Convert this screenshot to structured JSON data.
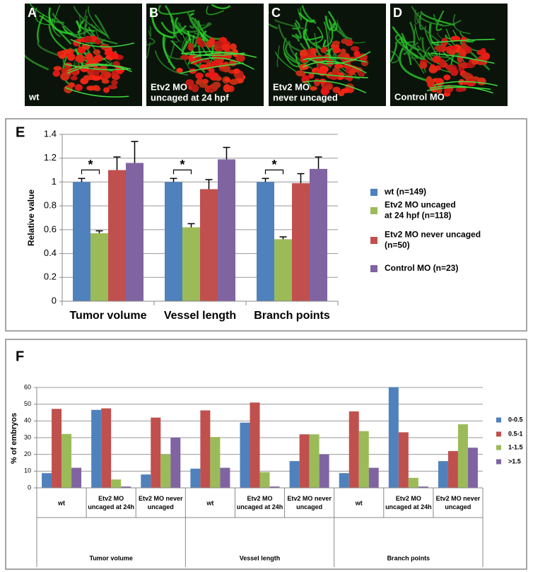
{
  "panels": [
    {
      "letter": "A",
      "caption": "wt"
    },
    {
      "letter": "B",
      "caption": "Etv2 MO\nuncaged at 24 hpf"
    },
    {
      "letter": "C",
      "caption": "Etv2 MO\nnever uncaged"
    },
    {
      "letter": "D",
      "caption": "Control MO"
    }
  ],
  "chart_data": [
    {
      "type": "bar",
      "panel": "E",
      "y_label": "Relative value",
      "categories": [
        "Tumor volume",
        "Vessel length",
        "Branch points"
      ],
      "series": [
        {
          "name": "wt (n=149)",
          "color": "#4f81bd",
          "values": [
            1.0,
            1.0,
            1.0
          ],
          "errors": [
            0.03,
            0.03,
            0.03
          ]
        },
        {
          "name": "Etv2 MO uncaged\nat 24 hpf (n=118)",
          "color": "#9bbb59",
          "values": [
            0.57,
            0.62,
            0.52
          ],
          "errors": [
            0.02,
            0.03,
            0.02
          ]
        },
        {
          "name": "Etv2 MO never uncaged\n(n=50)",
          "color": "#c0504d",
          "values": [
            1.1,
            0.94,
            0.99
          ],
          "errors": [
            0.11,
            0.08,
            0.08
          ]
        },
        {
          "name": "Control MO (n=23)",
          "color": "#8064a2",
          "values": [
            1.16,
            1.19,
            1.11
          ],
          "errors": [
            0.18,
            0.1,
            0.1
          ]
        }
      ],
      "annotations": [
        "*",
        "*",
        "*"
      ],
      "ylim": [
        0,
        1.4
      ],
      "yticks": [
        0,
        0.2,
        0.4,
        0.6,
        0.8,
        1,
        1.2,
        1.4
      ],
      "grid": true,
      "legend": "right"
    },
    {
      "type": "bar",
      "panel": "F",
      "y_label": "% of embryos",
      "categories": [
        "wt",
        "Etv2 MO\nuncaged at 24h",
        "Etv2 MO never\nuncaged",
        "wt",
        "Etv2 MO\nuncaged at 24h",
        "Etv2 MO never\nuncaged",
        "wt",
        "Etv2 MO\nuncaged at 24h",
        "Etv2 MO never\nuncaged"
      ],
      "groups": [
        "Tumor volume",
        "Vessel length",
        "Branch points"
      ],
      "series": [
        {
          "name": "0-0.5",
          "color": "#4f81bd",
          "values": [
            8.8,
            46.6,
            8,
            11.5,
            39,
            16,
            8.8,
            60.2,
            16
          ]
        },
        {
          "name": "0.5-1",
          "color": "#c0504d",
          "values": [
            47.2,
            47.5,
            42,
            46.3,
            51,
            32,
            45.7,
            33.2,
            22
          ]
        },
        {
          "name": "1-1.5",
          "color": "#9bbb59",
          "values": [
            32.2,
            5,
            20,
            30.4,
            9.4,
            32,
            33.9,
            6,
            38
          ]
        },
        {
          "name": ">1.5",
          "color": "#8064a2",
          "values": [
            12,
            0.8,
            30,
            12,
            0.8,
            20,
            12,
            0.8,
            24
          ]
        }
      ],
      "ylim": [
        0,
        60
      ],
      "yticks": [
        0,
        10,
        20,
        30,
        40,
        50,
        60
      ],
      "grid": true,
      "legend": "right"
    }
  ]
}
